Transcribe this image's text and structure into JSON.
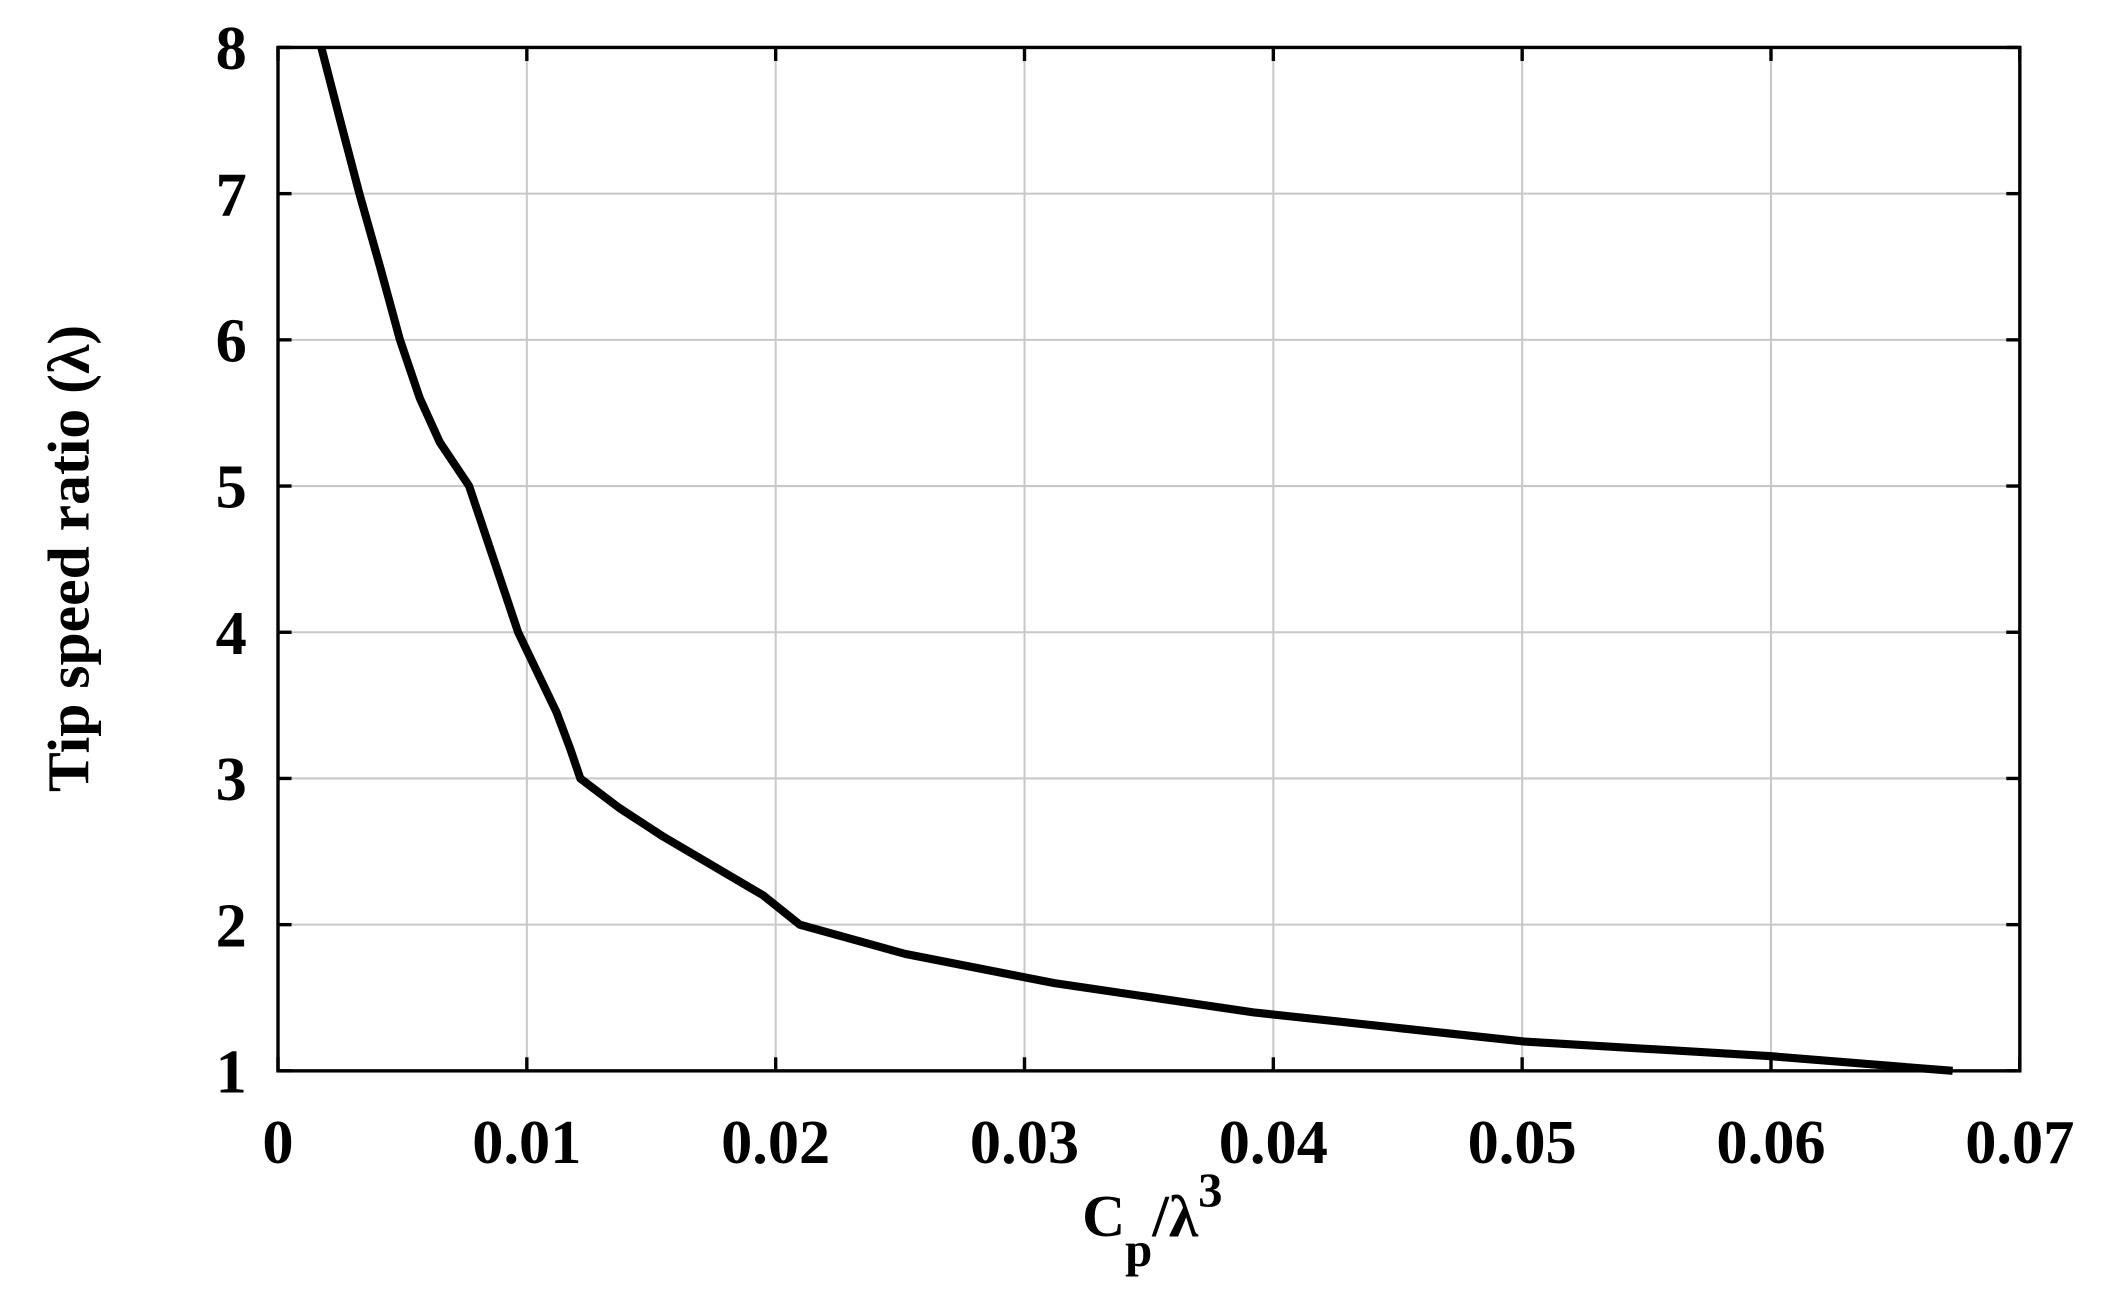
{
  "chart_data": {
    "type": "line",
    "xlabel": [
      "C",
      "p",
      "/λ",
      "3"
    ],
    "ylabel": "Tip speed ratio (λ)",
    "x": [
      0.00174,
      0.0025,
      0.00327,
      0.0041,
      0.0049,
      0.0057,
      0.0065,
      0.00768,
      0.00965,
      0.0112,
      0.01175,
      0.01215,
      0.0137,
      0.0155,
      0.0175,
      0.0195,
      0.02097,
      0.0252,
      0.0312,
      0.0392,
      0.0501,
      0.06,
      0.0673
    ],
    "series": [
      {
        "name": "Tip speed ratio",
        "color": "#000000",
        "values": [
          8,
          7.5,
          7,
          6.5,
          6,
          5.6,
          5.3,
          5,
          4,
          3.45,
          3.2,
          3,
          2.8,
          2.6,
          2.4,
          2.2,
          2,
          1.8,
          1.6,
          1.4,
          1.2,
          1.1,
          1.0
        ]
      }
    ],
    "xlim": [
      0,
      0.07
    ],
    "ylim": [
      1,
      8
    ],
    "xticks": [
      0,
      0.01,
      0.02,
      0.03,
      0.04,
      0.05,
      0.06,
      0.07
    ],
    "yticks": [
      1,
      2,
      3,
      4,
      5,
      6,
      7,
      8
    ],
    "grid": true
  }
}
